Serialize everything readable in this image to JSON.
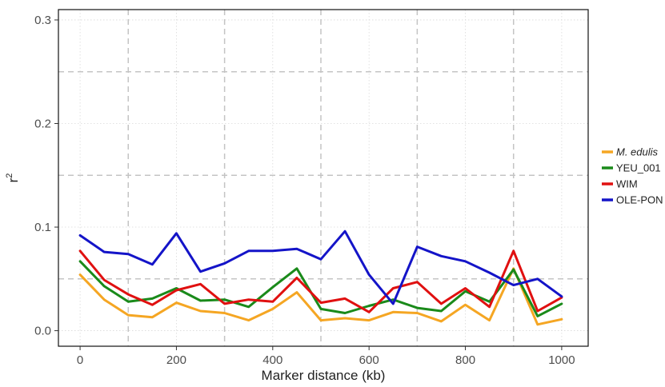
{
  "chart_data": {
    "type": "line",
    "title": "",
    "xlabel": "Marker distance (kb)",
    "ylabel_base": "r",
    "ylabel_sup": "2",
    "xlim": [
      -45,
      1055
    ],
    "ylim": [
      -0.015,
      0.31
    ],
    "x_ticks": [
      0,
      200,
      400,
      600,
      800,
      1000
    ],
    "y_ticks": [
      0.0,
      0.1,
      0.2,
      0.3
    ],
    "y_tick_labels": [
      "0.0",
      "0.1",
      "0.2",
      "0.3"
    ],
    "x_major_dashed_lines": [
      100,
      300,
      500,
      700,
      900
    ],
    "y_major_dashed_lines": [
      0.05,
      0.15,
      0.25
    ],
    "legend_position": "right",
    "x": [
      0,
      50,
      100,
      150,
      200,
      250,
      300,
      350,
      400,
      450,
      500,
      550,
      600,
      650,
      700,
      750,
      800,
      850,
      900,
      950,
      1000
    ],
    "series": [
      {
        "name": "M. edulis",
        "italic": true,
        "color": "#f5a623",
        "values": [
          0.054,
          0.03,
          0.015,
          0.013,
          0.027,
          0.019,
          0.017,
          0.01,
          0.021,
          0.037,
          0.01,
          0.012,
          0.01,
          0.018,
          0.017,
          0.009,
          0.025,
          0.01,
          0.06,
          0.006,
          0.011
        ]
      },
      {
        "name": "YEU_001",
        "italic": false,
        "color": "#1a8a1a",
        "values": [
          0.067,
          0.043,
          0.028,
          0.031,
          0.041,
          0.029,
          0.03,
          0.023,
          0.042,
          0.06,
          0.021,
          0.017,
          0.024,
          0.03,
          0.022,
          0.019,
          0.038,
          0.028,
          0.059,
          0.014,
          0.026
        ]
      },
      {
        "name": "WIM",
        "italic": false,
        "color": "#e01010",
        "values": [
          0.077,
          0.049,
          0.035,
          0.025,
          0.039,
          0.045,
          0.026,
          0.03,
          0.028,
          0.051,
          0.027,
          0.031,
          0.018,
          0.041,
          0.047,
          0.026,
          0.041,
          0.023,
          0.077,
          0.019,
          0.032
        ]
      },
      {
        "name": "OLE-PON",
        "italic": false,
        "color": "#1414c8",
        "values": [
          0.092,
          0.076,
          0.074,
          0.064,
          0.094,
          0.057,
          0.065,
          0.077,
          0.077,
          0.079,
          0.069,
          0.096,
          0.054,
          0.026,
          0.081,
          0.072,
          0.067,
          0.056,
          0.044,
          0.05,
          0.033
        ]
      }
    ]
  }
}
